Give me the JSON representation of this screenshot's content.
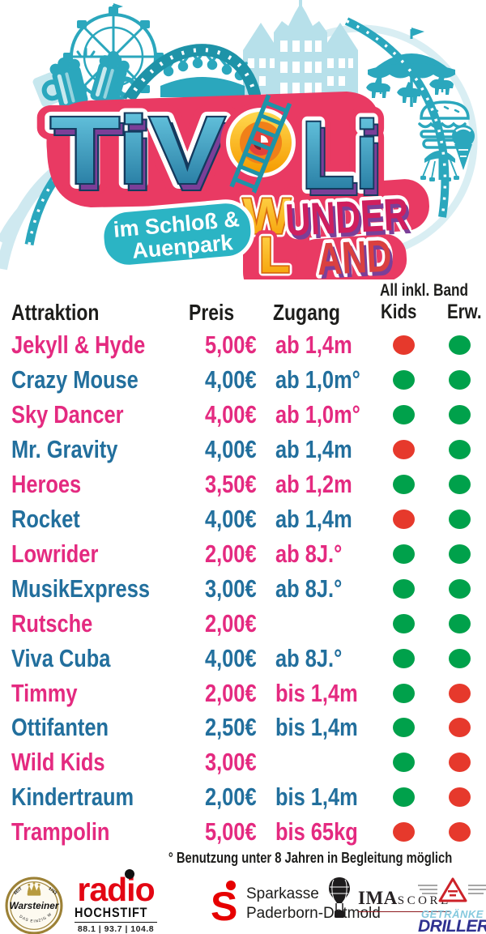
{
  "logo": {
    "t1": "TiV",
    "t2": "Li",
    "owl_w": "W",
    "owl_l": "L",
    "under": "UNDER",
    "and": "AND",
    "loc1": "im Schloß &",
    "loc2": "Auenpark"
  },
  "table": {
    "headers": {
      "attraction": "Attraktion",
      "price": "Preis",
      "access": "Zugang",
      "band_group": "All inkl. Band",
      "kids": "Kids",
      "adults": "Erw."
    },
    "rows": [
      {
        "name": "Jekyll & Hyde",
        "price": "5,00€",
        "access": "ab 1,4m",
        "kids": "red",
        "adults": "green"
      },
      {
        "name": "Crazy Mouse",
        "price": "4,00€",
        "access": "ab 1,0m°",
        "kids": "green",
        "adults": "green"
      },
      {
        "name": "Sky Dancer",
        "price": "4,00€",
        "access": "ab 1,0m°",
        "kids": "green",
        "adults": "green"
      },
      {
        "name": "Mr. Gravity",
        "price": "4,00€",
        "access": "ab 1,4m",
        "kids": "red",
        "adults": "green"
      },
      {
        "name": "Heroes",
        "price": "3,50€",
        "access": "ab 1,2m",
        "kids": "green",
        "adults": "green"
      },
      {
        "name": "Rocket",
        "price": "4,00€",
        "access": "ab 1,4m",
        "kids": "red",
        "adults": "green"
      },
      {
        "name": "Lowrider",
        "price": "2,00€",
        "access": "ab 8J.°",
        "kids": "green",
        "adults": "green"
      },
      {
        "name": "MusikExpress",
        "price": "3,00€",
        "access": "ab 8J.°",
        "kids": "green",
        "adults": "green"
      },
      {
        "name": "Rutsche",
        "price": "2,00€",
        "access": "",
        "kids": "green",
        "adults": "green"
      },
      {
        "name": "Viva Cuba",
        "price": "4,00€",
        "access": "ab 8J.°",
        "kids": "green",
        "adults": "green"
      },
      {
        "name": "Timmy",
        "price": "2,00€",
        "access": "bis 1,4m",
        "kids": "green",
        "adults": "red"
      },
      {
        "name": "Ottifanten",
        "price": "2,50€",
        "access": "bis 1,4m",
        "kids": "green",
        "adults": "red"
      },
      {
        "name": "Wild Kids",
        "price": "3,00€",
        "access": "",
        "kids": "green",
        "adults": "red"
      },
      {
        "name": "Kindertraum",
        "price": "2,00€",
        "access": "bis 1,4m",
        "kids": "green",
        "adults": "red"
      },
      {
        "name": "Trampolin",
        "price": "5,00€",
        "access": "bis 65kg",
        "kids": "red",
        "adults": "red"
      }
    ],
    "footnote": "° Benutzung unter 8 Jahren in Begleitung möglich"
  },
  "colors": {
    "row_pink": "#e42a80",
    "row_blue": "#226f9d",
    "dot_green": "#00a14b",
    "dot_red": "#e6392c",
    "header_text": "#1d1d1b",
    "teal": "#2ba7bd",
    "logo_pink": "#e93a63"
  },
  "footer": {
    "warsteiner": {
      "name": "Warsteiner",
      "seit": "SEIT",
      "year": "1753",
      "slogan": "DAS EINZIG WAHRE"
    },
    "radio": {
      "name": "radio",
      "sub": "HOCHSTIFT",
      "freq": "88.1 | 93.7 | 104.8"
    },
    "sparkasse": {
      "line1": "Sparkasse",
      "line2": "Paderborn-Detmold"
    },
    "imascore": {
      "part1": "IMA",
      "part2": "SCORE"
    },
    "driller": {
      "line1": "GETRÄNKE",
      "line2": "DRILLER"
    }
  }
}
